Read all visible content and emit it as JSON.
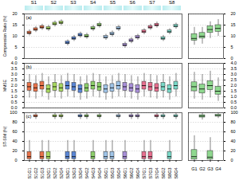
{
  "image_strip": {
    "labels": [
      "S1",
      "S2",
      "S3",
      "S4",
      "S5",
      "S6",
      "S7",
      "S8"
    ]
  },
  "chart_data": [
    {
      "type": "box",
      "panel_label": "(a)",
      "y_label": "Compression Ratio (%)",
      "grid": true,
      "tick_labels": "y",
      "categories": [
        "S1G1",
        "S1G2",
        "S1G3",
        "S2G1",
        "S2G2",
        "S2G4",
        "S3G1",
        "S3G3",
        "S3G4",
        "S4G2",
        "S4G3",
        "S4G4",
        "S5G1",
        "S5G3",
        "S5G4",
        "S6G1",
        "S6G2",
        "S6G4",
        "S7G1",
        "S7G3",
        "S7G4",
        "S8G2",
        "S8G3",
        "S8G4"
      ],
      "colors": [
        "#e8734a",
        "#e8734a",
        "#e8734a",
        "#a8d860",
        "#a8d860",
        "#a8d860",
        "#5a86d6",
        "#5a86d6",
        "#5a86d6",
        "#8ccf6a",
        "#8ccf6a",
        "#8ccf6a",
        "#9fc4e8",
        "#9fc4e8",
        "#9fc4e8",
        "#a88fd8",
        "#a88fd8",
        "#a88fd8",
        "#e86f8f",
        "#e86f8f",
        "#e86f8f",
        "#7ad9c8",
        "#7ad9c8",
        "#7ad9c8"
      ],
      "boxes": [
        {
          "min": 10.2,
          "q1": 11.0,
          "median": 11.5,
          "q3": 12.1,
          "max": 12.9
        },
        {
          "min": 11.7,
          "q1": 12.5,
          "median": 13.0,
          "q3": 13.6,
          "max": 14.4
        },
        {
          "min": 12.7,
          "q1": 13.5,
          "median": 14.0,
          "q3": 14.6,
          "max": 15.4
        },
        {
          "min": 12.2,
          "q1": 13.0,
          "median": 13.5,
          "q3": 14.1,
          "max": 14.9
        },
        {
          "min": 14.2,
          "q1": 15.0,
          "median": 15.5,
          "q3": 16.1,
          "max": 16.9
        },
        {
          "min": 14.7,
          "q1": 15.5,
          "median": 16.0,
          "q3": 16.6,
          "max": 17.4
        },
        {
          "min": 5.7,
          "q1": 6.5,
          "median": 7.0,
          "q3": 7.6,
          "max": 8.4
        },
        {
          "min": 7.7,
          "q1": 8.5,
          "median": 9.0,
          "q3": 9.6,
          "max": 10.4
        },
        {
          "min": 9.2,
          "q1": 10.0,
          "median": 10.5,
          "q3": 11.1,
          "max": 11.9
        },
        {
          "min": 8.7,
          "q1": 9.5,
          "median": 10.0,
          "q3": 10.6,
          "max": 11.4
        },
        {
          "min": 12.2,
          "q1": 13.0,
          "median": 13.5,
          "q3": 14.1,
          "max": 14.9
        },
        {
          "min": 13.7,
          "q1": 14.5,
          "median": 15.0,
          "q3": 15.6,
          "max": 16.4
        },
        {
          "min": 8.2,
          "q1": 9.0,
          "median": 9.5,
          "q3": 10.1,
          "max": 10.9
        },
        {
          "min": 9.7,
          "q1": 10.5,
          "median": 11.0,
          "q3": 11.6,
          "max": 12.4
        },
        {
          "min": 12.2,
          "q1": 13.0,
          "median": 13.5,
          "q3": 14.1,
          "max": 14.9
        },
        {
          "min": 4.7,
          "q1": 5.5,
          "median": 6.0,
          "q3": 6.6,
          "max": 7.4
        },
        {
          "min": 6.7,
          "q1": 7.5,
          "median": 8.0,
          "q3": 8.6,
          "max": 9.4
        },
        {
          "min": 8.2,
          "q1": 9.0,
          "median": 9.5,
          "q3": 10.1,
          "max": 10.9
        },
        {
          "min": 10.7,
          "q1": 11.5,
          "median": 12.0,
          "q3": 12.6,
          "max": 13.4
        },
        {
          "min": 12.7,
          "q1": 13.5,
          "median": 14.0,
          "q3": 14.6,
          "max": 15.4
        },
        {
          "min": 13.7,
          "q1": 14.5,
          "median": 15.0,
          "q3": 15.6,
          "max": 16.4
        },
        {
          "min": 7.7,
          "q1": 8.5,
          "median": 9.0,
          "q3": 9.6,
          "max": 10.4
        },
        {
          "min": 10.7,
          "q1": 11.5,
          "median": 12.0,
          "q3": 12.6,
          "max": 13.4
        },
        {
          "min": 13.2,
          "q1": 14.0,
          "median": 14.5,
          "q3": 15.1,
          "max": 15.9
        }
      ],
      "ylim": [
        0,
        20
      ],
      "yticks": [
        0,
        5,
        10,
        15,
        20
      ]
    },
    {
      "type": "box",
      "grid": true,
      "tick_labels": "y",
      "categories": [
        "G1",
        "G2",
        "G3",
        "G4"
      ],
      "colors": [
        "#8fd88f",
        "#8fd88f",
        "#8fd88f",
        "#8fd88f"
      ],
      "boxes": [
        {
          "min": 6,
          "q1": 8,
          "median": 9,
          "q3": 11,
          "max": 14
        },
        {
          "min": 6.5,
          "q1": 9,
          "median": 10,
          "q3": 11.5,
          "max": 14
        },
        {
          "min": 9,
          "q1": 11.5,
          "median": 13,
          "q3": 14.5,
          "max": 16.5
        },
        {
          "min": 10,
          "q1": 12,
          "median": 13.5,
          "q3": 15,
          "max": 17.5
        }
      ],
      "ylim": [
        0,
        20
      ],
      "yticks": [
        0,
        5,
        10,
        15,
        20
      ]
    },
    {
      "type": "box",
      "panel_label": "(b)",
      "y_label": "MMSE",
      "grid": true,
      "tick_labels": "y",
      "categories": [
        "S1G1",
        "S1G2",
        "S1G3",
        "S2G1",
        "S2G2",
        "S2G4",
        "S3G1",
        "S3G3",
        "S3G4",
        "S4G2",
        "S4G3",
        "S4G4",
        "S5G1",
        "S5G3",
        "S5G4",
        "S6G1",
        "S6G2",
        "S6G4",
        "S7G1",
        "S7G3",
        "S7G4",
        "S8G2",
        "S8G3",
        "S8G4"
      ],
      "colors": [
        "#e8734a",
        "#e8734a",
        "#e8734a",
        "#a8d860",
        "#a8d860",
        "#a8d860",
        "#5a86d6",
        "#5a86d6",
        "#5a86d6",
        "#8ccf6a",
        "#8ccf6a",
        "#8ccf6a",
        "#9fc4e8",
        "#9fc4e8",
        "#9fc4e8",
        "#a88fd8",
        "#a88fd8",
        "#a88fd8",
        "#e86f8f",
        "#e86f8f",
        "#e86f8f",
        "#7ad9c8",
        "#7ad9c8",
        "#7ad9c8"
      ],
      "boxes": [
        {
          "min": 0.9,
          "q1": 1.55,
          "median": 1.9,
          "q3": 2.25,
          "max": 3.0
        },
        {
          "min": 0.8,
          "q1": 1.45,
          "median": 1.8,
          "q3": 2.15,
          "max": 2.9
        },
        {
          "min": 1.0,
          "q1": 1.65,
          "median": 2.0,
          "q3": 2.35,
          "max": 3.1
        },
        {
          "min": 0.7,
          "q1": 1.35,
          "median": 1.7,
          "q3": 2.05,
          "max": 2.8
        },
        {
          "min": 0.9,
          "q1": 1.55,
          "median": 1.9,
          "q3": 2.25,
          "max": 3.0
        },
        {
          "min": 0.8,
          "q1": 1.45,
          "median": 1.8,
          "q3": 2.15,
          "max": 2.9
        },
        {
          "min": 1.0,
          "q1": 1.65,
          "median": 2.0,
          "q3": 2.35,
          "max": 3.1
        },
        {
          "min": 0.9,
          "q1": 1.55,
          "median": 1.9,
          "q3": 2.25,
          "max": 3.0
        },
        {
          "min": 0.7,
          "q1": 1.35,
          "median": 1.7,
          "q3": 2.05,
          "max": 2.8
        },
        {
          "min": 0.8,
          "q1": 1.45,
          "median": 1.8,
          "q3": 2.15,
          "max": 2.9
        },
        {
          "min": 1.0,
          "q1": 1.65,
          "median": 2.0,
          "q3": 2.35,
          "max": 3.1
        },
        {
          "min": 0.9,
          "q1": 1.55,
          "median": 1.9,
          "q3": 2.25,
          "max": 3.0
        },
        {
          "min": 0.7,
          "q1": 1.35,
          "median": 1.7,
          "q3": 2.05,
          "max": 2.8
        },
        {
          "min": 0.8,
          "q1": 1.45,
          "median": 1.8,
          "q3": 2.15,
          "max": 2.9
        },
        {
          "min": 1.0,
          "q1": 1.65,
          "median": 2.0,
          "q3": 2.35,
          "max": 3.1
        },
        {
          "min": 0.9,
          "q1": 1.55,
          "median": 1.9,
          "q3": 2.25,
          "max": 3.0
        },
        {
          "min": 0.8,
          "q1": 1.45,
          "median": 1.8,
          "q3": 2.15,
          "max": 2.9
        },
        {
          "min": 0.7,
          "q1": 1.35,
          "median": 1.7,
          "q3": 2.05,
          "max": 2.8
        },
        {
          "min": 1.0,
          "q1": 1.65,
          "median": 2.0,
          "q3": 2.35,
          "max": 3.1
        },
        {
          "min": 0.9,
          "q1": 1.55,
          "median": 1.9,
          "q3": 2.25,
          "max": 3.0
        },
        {
          "min": 0.8,
          "q1": 1.45,
          "median": 1.8,
          "q3": 2.15,
          "max": 2.9
        },
        {
          "min": 0.9,
          "q1": 1.55,
          "median": 1.9,
          "q3": 2.25,
          "max": 3.0
        },
        {
          "min": 0.7,
          "q1": 1.35,
          "median": 1.7,
          "q3": 2.05,
          "max": 2.8
        },
        {
          "min": 1.0,
          "q1": 1.65,
          "median": 2.0,
          "q3": 2.35,
          "max": 3.1
        }
      ],
      "ylim": [
        0,
        4
      ],
      "yticks": [
        {
          "value": 0,
          "label": "0.0"
        },
        0.5,
        {
          "value": 1,
          "label": "1.0"
        },
        1.5,
        {
          "value": 2,
          "label": "2.0"
        },
        2.5,
        {
          "value": 3,
          "label": "3.0"
        },
        3.5,
        {
          "value": 4,
          "label": "4.0"
        }
      ]
    },
    {
      "type": "box",
      "grid": true,
      "tick_labels": "y",
      "categories": [
        "G1",
        "G2",
        "G3",
        "G4"
      ],
      "colors": [
        "#8fd88f",
        "#8fd88f",
        "#8fd88f",
        "#8fd88f"
      ],
      "boxes": [
        {
          "min": 0.8,
          "q1": 1.5,
          "median": 1.9,
          "q3": 2.3,
          "max": 3.2
        },
        {
          "min": 0.7,
          "q1": 1.3,
          "median": 1.7,
          "q3": 2.1,
          "max": 3.0
        },
        {
          "min": 0.9,
          "q1": 1.6,
          "median": 2.0,
          "q3": 2.4,
          "max": 3.3
        },
        {
          "min": 0.6,
          "q1": 1.2,
          "median": 1.5,
          "q3": 1.9,
          "max": 2.7
        }
      ],
      "ylim": [
        0,
        4
      ],
      "yticks": [
        {
          "value": 0,
          "label": "0.0"
        },
        0.5,
        {
          "value": 1,
          "label": "1.0"
        },
        1.5,
        {
          "value": 2,
          "label": "2.0"
        },
        2.5,
        {
          "value": 3,
          "label": "3.0"
        },
        3.5,
        {
          "value": 4,
          "label": "4.0"
        }
      ]
    },
    {
      "type": "box",
      "panel_label": "(c)",
      "y_label": "ST-SIM (%)",
      "grid": true,
      "categories": [
        "S1G1",
        "S1G2",
        "S1G3",
        "S2G1",
        "S2G2",
        "S2G4",
        "S3G1",
        "S3G3",
        "S3G4",
        "S4G2",
        "S4G3",
        "S4G4",
        "S5G1",
        "S5G3",
        "S5G4",
        "S6G1",
        "S6G2",
        "S6G4",
        "S7G1",
        "S7G3",
        "S7G4",
        "S8G2",
        "S8G3",
        "S8G4"
      ],
      "colors": [
        "#e8734a",
        "#e8734a",
        "#e8734a",
        "#a8d860",
        "#a8d860",
        "#a8d860",
        "#5a86d6",
        "#5a86d6",
        "#5a86d6",
        "#8ccf6a",
        "#8ccf6a",
        "#8ccf6a",
        "#9fc4e8",
        "#9fc4e8",
        "#9fc4e8",
        "#a88fd8",
        "#a88fd8",
        "#a88fd8",
        "#e86f8f",
        "#e86f8f",
        "#e86f8f",
        "#7ad9c8",
        "#7ad9c8",
        "#7ad9c8"
      ],
      "boxes": [
        {
          "min": 0,
          "q1": 3,
          "median": 8,
          "q3": 18,
          "max": 42
        },
        {
          "min": 86,
          "q1": 91,
          "median": 93,
          "q3": 95,
          "max": 99
        },
        {
          "min": 0,
          "q1": 3,
          "median": 8,
          "q3": 18,
          "max": 42
        },
        {
          "min": 0,
          "q1": 3,
          "median": 8,
          "q3": 18,
          "max": 42
        },
        {
          "min": 86,
          "q1": 91,
          "median": 93,
          "q3": 95,
          "max": 99
        },
        {
          "min": 86,
          "q1": 91,
          "median": 93,
          "q3": 95,
          "max": 99
        },
        {
          "min": 0,
          "q1": 3,
          "median": 8,
          "q3": 18,
          "max": 42
        },
        {
          "min": 0,
          "q1": 3,
          "median": 8,
          "q3": 18,
          "max": 42
        },
        {
          "min": 86,
          "q1": 91,
          "median": 93,
          "q3": 95,
          "max": 99
        },
        {
          "min": 86,
          "q1": 91,
          "median": 93,
          "q3": 95,
          "max": 99
        },
        {
          "min": 0,
          "q1": 3,
          "median": 8,
          "q3": 18,
          "max": 42
        },
        {
          "min": 86,
          "q1": 91,
          "median": 93,
          "q3": 95,
          "max": 99
        },
        {
          "min": 0,
          "q1": 3,
          "median": 8,
          "q3": 18,
          "max": 42
        },
        {
          "min": 0,
          "q1": 3,
          "median": 8,
          "q3": 18,
          "max": 42
        },
        {
          "min": 86,
          "q1": 91,
          "median": 93,
          "q3": 95,
          "max": 99
        },
        {
          "min": 0,
          "q1": 3,
          "median": 8,
          "q3": 18,
          "max": 42
        },
        {
          "min": 86,
          "q1": 91,
          "median": 93,
          "q3": 95,
          "max": 99
        },
        {
          "min": 86,
          "q1": 91,
          "median": 93,
          "q3": 95,
          "max": 99
        },
        {
          "min": 0,
          "q1": 3,
          "median": 8,
          "q3": 18,
          "max": 42
        },
        {
          "min": 0,
          "q1": 3,
          "median": 8,
          "q3": 18,
          "max": 42
        },
        {
          "min": 86,
          "q1": 91,
          "median": 93,
          "q3": 95,
          "max": 99
        },
        {
          "min": 86,
          "q1": 91,
          "median": 93,
          "q3": 95,
          "max": 99
        },
        {
          "min": 0,
          "q1": 3,
          "median": 8,
          "q3": 18,
          "max": 42
        },
        {
          "min": 86,
          "q1": 91,
          "median": 93,
          "q3": 95,
          "max": 99
        }
      ],
      "ylim": [
        0,
        100
      ],
      "yticks": [
        0,
        20,
        40,
        60,
        80,
        100
      ]
    },
    {
      "type": "box",
      "grid": true,
      "categories": [
        "G1",
        "G2",
        "G3",
        "G4"
      ],
      "colors": [
        "#8fd88f",
        "#8fd88f",
        "#8fd88f",
        "#8fd88f"
      ],
      "boxes": [
        {
          "min": 0,
          "q1": 2,
          "median": 8,
          "q3": 22,
          "max": 52
        },
        {
          "min": 85,
          "q1": 90,
          "median": 93,
          "q3": 95,
          "max": 99
        },
        {
          "min": 0,
          "q1": 2,
          "median": 7,
          "q3": 20,
          "max": 48
        },
        {
          "min": 88,
          "q1": 92,
          "median": 94,
          "q3": 96,
          "max": 99
        }
      ],
      "ylim": [
        0,
        100
      ],
      "yticks": [
        0,
        20,
        40,
        60,
        80,
        100
      ]
    }
  ]
}
